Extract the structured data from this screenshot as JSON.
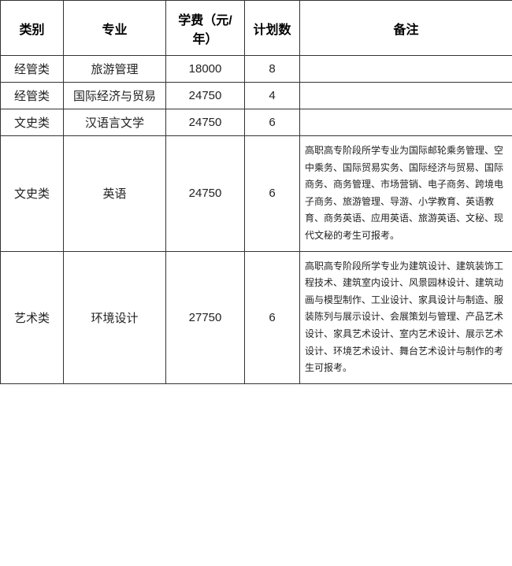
{
  "table": {
    "headers": {
      "category": "类别",
      "major": "专业",
      "fee": "学费（元/年）",
      "plan": "计划数",
      "note": "备注"
    },
    "rows": [
      {
        "category": "经管类",
        "major": "旅游管理",
        "fee": "18000",
        "plan": "8",
        "note": ""
      },
      {
        "category": "经管类",
        "major": "国际经济与贸易",
        "fee": "24750",
        "plan": "4",
        "note": ""
      },
      {
        "category": "文史类",
        "major": "汉语言文学",
        "fee": "24750",
        "plan": "6",
        "note": ""
      },
      {
        "category": "文史类",
        "major": "英语",
        "fee": "24750",
        "plan": "6",
        "note": "高职高专阶段所学专业为国际邮轮乘务管理、空中乘务、国际贸易实务、国际经济与贸易、国际商务、商务管理、市场营销、电子商务、跨境电子商务、旅游管理、导游、小学教育、英语教育、商务英语、应用英语、旅游英语、文秘、现代文秘的考生可报考。"
      },
      {
        "category": "艺术类",
        "major": "环境设计",
        "fee": "27750",
        "plan": "6",
        "note": "高职高专阶段所学专业为建筑设计、建筑装饰工程技术、建筑室内设计、风景园林设计、建筑动画与模型制作、工业设计、家具设计与制造、服装陈列与展示设计、会展策划与管理、产品艺术设计、家具艺术设计、室内艺术设计、展示艺术设计、环境艺术设计、舞台艺术设计与制作的考生可报考。"
      }
    ]
  },
  "style": {
    "border_color": "#333333",
    "header_fontsize": 16,
    "body_fontsize": 15,
    "note_fontsize": 12,
    "note_lineheight": 1.8,
    "col_widths": {
      "cat": 80,
      "major": 130,
      "fee": 100,
      "plan": 70,
      "note": 270
    },
    "background": "#ffffff",
    "text_color": "#222222"
  }
}
